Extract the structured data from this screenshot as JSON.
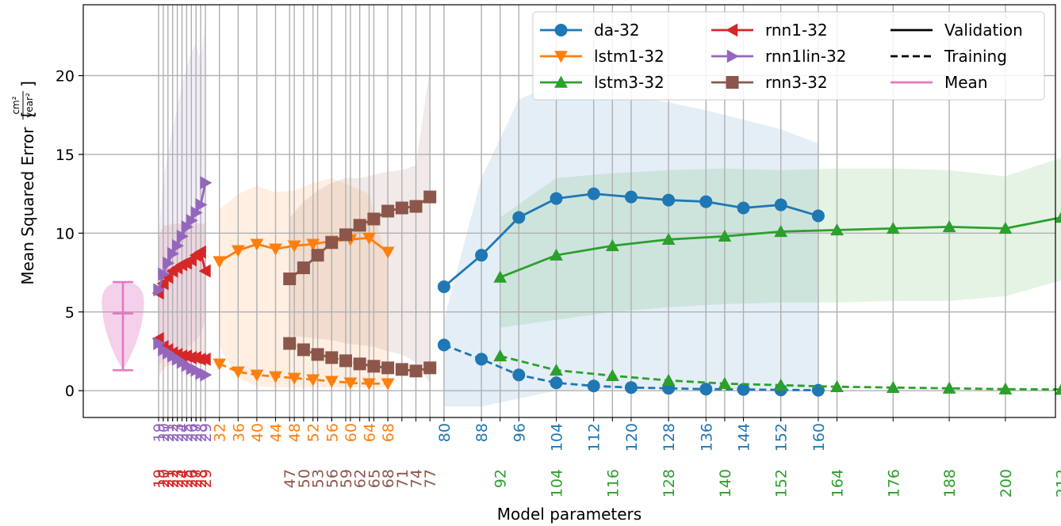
{
  "chart_data": {
    "type": "line",
    "xlabel": "Model parameters",
    "ylabel": "Mean Squared Error",
    "ylabel_unit": {
      "num": "cm²",
      "den": "year²"
    },
    "ylim": [
      -1.7,
      24.5
    ],
    "yticks": [
      0,
      5,
      10,
      15,
      20
    ],
    "grid": true,
    "legend_position": "top-right",
    "style_legend": [
      {
        "label": "Validation",
        "dash": "solid"
      },
      {
        "label": "Training",
        "dash": "dashed"
      },
      {
        "label": "Mean",
        "color": "#e377c2"
      }
    ],
    "violin": {
      "label": "Mean",
      "color": "#e377c2",
      "min": 1.3,
      "mean": 4.9,
      "max": 6.9
    },
    "series": [
      {
        "name": "da-32",
        "color": "#1f77b4",
        "marker": "circle",
        "tick_row": 0,
        "params": [
          "80",
          "88",
          "96",
          "104",
          "112",
          "120",
          "128",
          "136",
          "144",
          "152",
          "160"
        ],
        "validation": [
          6.6,
          8.6,
          11.0,
          12.2,
          12.5,
          12.3,
          12.1,
          12.0,
          11.6,
          11.8,
          11.1
        ],
        "training": [
          2.9,
          2.0,
          1.0,
          0.5,
          0.3,
          0.2,
          0.15,
          0.1,
          0.08,
          0.05,
          0.03
        ],
        "band_upper": [
          4.5,
          13.5,
          18.5,
          19.5,
          19.3,
          18.7,
          18.3,
          17.8,
          17.2,
          16.6,
          15.7
        ],
        "band_lower": [
          -1.0,
          -1.0,
          -0.5,
          0.0,
          0.1,
          0.1,
          0.1,
          0.1,
          0.1,
          0.1,
          0.1
        ]
      },
      {
        "name": "lstm1-32",
        "color": "#ff7f0e",
        "marker": "triangle-down",
        "tick_row": 0,
        "params": [
          "32",
          "36",
          "40",
          "44",
          "48",
          "52",
          "56",
          "60",
          "64",
          "68"
        ],
        "validation": [
          8.2,
          8.9,
          9.3,
          9.0,
          9.2,
          9.3,
          9.5,
          9.6,
          9.7,
          8.8
        ],
        "training": [
          1.7,
          1.2,
          1.0,
          0.9,
          0.8,
          0.7,
          0.6,
          0.5,
          0.45,
          0.45
        ],
        "band_upper": [
          11.5,
          12.5,
          13.0,
          12.6,
          12.7,
          13.2,
          13.5,
          13.0,
          12.5,
          8.0
        ],
        "band_lower": [
          2.8,
          0.8,
          0.3,
          0.2,
          0.2,
          0.2,
          0.2,
          0.2,
          0.2,
          0.2
        ]
      },
      {
        "name": "lstm3-32",
        "color": "#2ca02c",
        "marker": "triangle-up",
        "tick_row": 1,
        "params": [
          "92",
          "104",
          "116",
          "128",
          "140",
          "152",
          "164",
          "176",
          "188",
          "200",
          "212"
        ],
        "validation": [
          7.2,
          8.6,
          9.2,
          9.6,
          9.8,
          10.1,
          10.2,
          10.3,
          10.4,
          10.3,
          11.0
        ],
        "training": [
          2.2,
          1.3,
          0.95,
          0.65,
          0.45,
          0.35,
          0.25,
          0.2,
          0.15,
          0.1,
          0.08
        ],
        "band_upper": [
          11.0,
          13.5,
          13.8,
          14.0,
          14.1,
          14.0,
          14.1,
          14.1,
          14.0,
          13.6,
          14.8
        ],
        "band_lower": [
          4.0,
          4.5,
          5.0,
          5.3,
          5.5,
          5.6,
          5.6,
          5.7,
          5.7,
          6.0,
          7.0
        ]
      },
      {
        "name": "rnn1-32",
        "color": "#d62728",
        "marker": "triangle-left",
        "tick_row": 1,
        "params": [
          "19",
          "20",
          "21",
          "22",
          "23",
          "24",
          "25",
          "26",
          "27",
          "28",
          "29"
        ],
        "validation": [
          6.2,
          6.8,
          7.2,
          7.6,
          7.8,
          8.0,
          8.1,
          8.3,
          8.6,
          8.8,
          7.6
        ],
        "training": [
          3.3,
          2.8,
          2.6,
          2.4,
          2.3,
          2.2,
          2.2,
          2.1,
          2.1,
          2.0,
          2.0
        ],
        "band_upper": [
          9.7,
          10.5,
          10.5,
          10.6,
          10.6,
          10.6,
          10.6,
          10.6,
          10.6,
          10.6,
          10.6
        ],
        "band_lower": [
          0.9,
          1.4,
          1.6,
          1.7,
          1.7,
          1.7,
          1.7,
          1.7,
          1.7,
          1.7,
          1.7
        ]
      },
      {
        "name": "rnn1lin-32",
        "color": "#9467bd",
        "marker": "triangle-right",
        "tick_row": 0,
        "params": [
          "19",
          "20",
          "21",
          "22",
          "23",
          "24",
          "25",
          "26",
          "27",
          "28",
          "29"
        ],
        "validation": [
          6.4,
          7.4,
          8.1,
          8.7,
          9.2,
          9.8,
          10.4,
          10.8,
          11.3,
          11.8,
          13.2
        ],
        "training": [
          3.0,
          2.6,
          2.4,
          2.2,
          2.0,
          1.8,
          1.6,
          1.4,
          1.3,
          1.1,
          1.0
        ],
        "band_upper": [
          9.7,
          13.5,
          15.0,
          16.7,
          18.0,
          19.5,
          20.5,
          21.5,
          22.0,
          21.0,
          23.5
        ],
        "band_lower": [
          1.5,
          2.0,
          2.0,
          2.0,
          2.1,
          2.3,
          2.7,
          3.0,
          3.2,
          3.6,
          4.5
        ]
      },
      {
        "name": "rnn3-32",
        "color": "#8c564b",
        "marker": "square",
        "tick_row": 1,
        "params": [
          "47",
          "50",
          "53",
          "56",
          "59",
          "62",
          "65",
          "68",
          "71",
          "74",
          "77"
        ],
        "validation": [
          7.1,
          7.8,
          8.6,
          9.4,
          9.9,
          10.5,
          10.9,
          11.4,
          11.6,
          11.7,
          12.3
        ],
        "training": [
          3.0,
          2.6,
          2.3,
          2.1,
          1.9,
          1.7,
          1.55,
          1.45,
          1.35,
          1.25,
          1.45
        ],
        "band_upper": [
          11.0,
          12.0,
          12.7,
          13.2,
          13.5,
          13.5,
          13.7,
          13.9,
          14.0,
          14.3,
          20.5
        ],
        "band_lower": [
          3.5,
          3.4,
          3.3,
          3.2,
          3.0,
          2.9,
          2.8,
          2.5,
          2.3,
          1.8,
          0.5
        ]
      }
    ]
  }
}
